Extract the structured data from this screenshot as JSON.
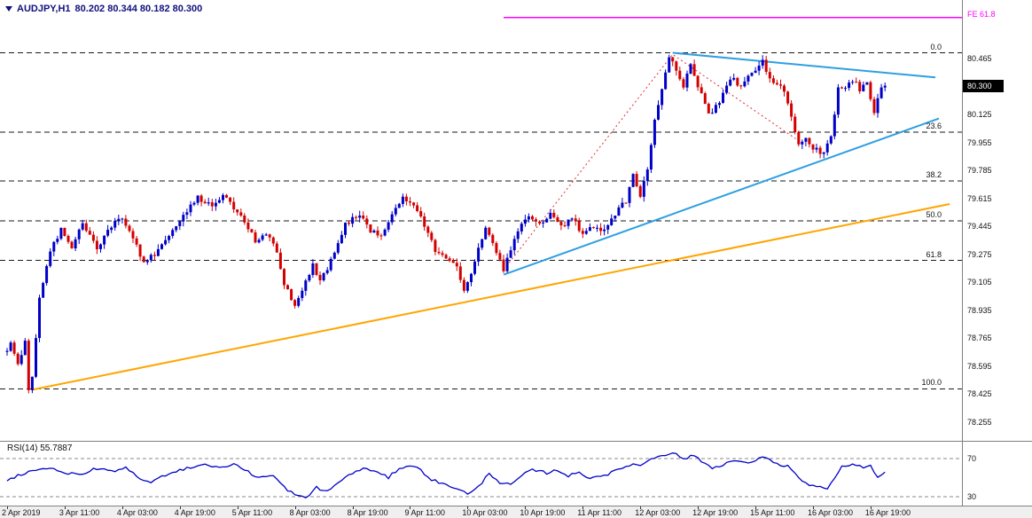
{
  "header": {
    "symbol": "AUDJPY,H1",
    "ohlc": "80.202 80.344 80.182 80.300"
  },
  "chart_data": {
    "type": "candlestick",
    "title": "AUDJPY H1",
    "timeframe": "H1",
    "open": 80.202,
    "high": 80.344,
    "low": 80.182,
    "close": 80.3,
    "current_price": "80.300",
    "price_ticks": [
      "80.465",
      "80.125",
      "79.955",
      "79.785",
      "79.615",
      "79.445",
      "79.275",
      "79.105",
      "78.935",
      "78.765",
      "78.595",
      "78.425",
      "78.255"
    ],
    "time_labels": [
      "2 Apr 2019",
      "3 Apr 11:00",
      "4 Apr 03:00",
      "4 Apr 19:00",
      "5 Apr 11:00",
      "8 Apr 03:00",
      "8 Apr 19:00",
      "9 Apr 11:00",
      "10 Apr 03:00",
      "10 Apr 19:00",
      "11 Apr 11:00",
      "12 Apr 03:00",
      "12 Apr 19:00",
      "15 Apr 11:00",
      "16 Apr 03:00",
      "16 Apr 19:00"
    ],
    "y_axis": {
      "top_tick_price": 80.465,
      "tick_step": 0.17,
      "min_visible": 78.15,
      "max_visible": 80.82
    },
    "candle_count": 245,
    "price_path_anchors": [
      [
        0,
        78.68
      ],
      [
        2,
        78.72
      ],
      [
        4,
        78.6
      ],
      [
        6,
        78.74
      ],
      [
        7,
        78.46
      ],
      [
        8,
        78.52
      ],
      [
        10,
        79.0
      ],
      [
        13,
        79.3
      ],
      [
        16,
        79.42
      ],
      [
        19,
        79.32
      ],
      [
        22,
        79.46
      ],
      [
        26,
        79.31
      ],
      [
        30,
        79.45
      ],
      [
        33,
        79.5
      ],
      [
        36,
        79.38
      ],
      [
        39,
        79.22
      ],
      [
        42,
        79.28
      ],
      [
        46,
        79.4
      ],
      [
        50,
        79.52
      ],
      [
        54,
        79.62
      ],
      [
        58,
        79.56
      ],
      [
        61,
        79.64
      ],
      [
        64,
        79.55
      ],
      [
        67,
        79.48
      ],
      [
        70,
        79.35
      ],
      [
        73,
        79.4
      ],
      [
        76,
        79.3
      ],
      [
        78,
        79.1
      ],
      [
        81,
        78.95
      ],
      [
        83,
        79.05
      ],
      [
        86,
        79.22
      ],
      [
        88,
        79.1
      ],
      [
        91,
        79.24
      ],
      [
        95,
        79.45
      ],
      [
        99,
        79.52
      ],
      [
        102,
        79.42
      ],
      [
        105,
        79.38
      ],
      [
        108,
        79.5
      ],
      [
        111,
        79.63
      ],
      [
        114,
        79.58
      ],
      [
        117,
        79.45
      ],
      [
        120,
        79.3
      ],
      [
        123,
        79.26
      ],
      [
        126,
        79.2
      ],
      [
        128,
        79.05
      ],
      [
        130,
        79.15
      ],
      [
        132,
        79.3
      ],
      [
        134,
        79.45
      ],
      [
        136,
        79.35
      ],
      [
        139,
        79.18
      ],
      [
        142,
        79.35
      ],
      [
        145,
        79.5
      ],
      [
        149,
        79.45
      ],
      [
        152,
        79.53
      ],
      [
        155,
        79.44
      ],
      [
        158,
        79.5
      ],
      [
        161,
        79.4
      ],
      [
        164,
        79.45
      ],
      [
        167,
        79.42
      ],
      [
        170,
        79.52
      ],
      [
        173,
        79.6
      ],
      [
        175,
        79.75
      ],
      [
        177,
        79.62
      ],
      [
        179,
        79.8
      ],
      [
        181,
        80.1
      ],
      [
        183,
        80.28
      ],
      [
        185,
        80.48
      ],
      [
        187,
        80.38
      ],
      [
        189,
        80.3
      ],
      [
        191,
        80.42
      ],
      [
        194,
        80.25
      ],
      [
        196,
        80.12
      ],
      [
        199,
        80.2
      ],
      [
        202,
        80.35
      ],
      [
        205,
        80.3
      ],
      [
        208,
        80.38
      ],
      [
        211,
        80.44
      ],
      [
        214,
        80.3
      ],
      [
        217,
        80.28
      ],
      [
        219,
        80.1
      ],
      [
        221,
        79.95
      ],
      [
        223,
        79.98
      ],
      [
        225,
        79.92
      ],
      [
        228,
        79.88
      ],
      [
        230,
        80.0
      ],
      [
        232,
        80.28
      ],
      [
        234,
        80.3
      ],
      [
        236,
        80.34
      ],
      [
        238,
        80.28
      ],
      [
        240,
        80.33
      ],
      [
        242,
        80.12
      ],
      [
        244,
        80.3
      ]
    ],
    "fib_retracement": {
      "levels": [
        {
          "label": "0.0",
          "price": 80.5
        },
        {
          "label": "23.6",
          "price": 80.017
        },
        {
          "label": "38.2",
          "price": 79.719
        },
        {
          "label": "50.0",
          "price": 79.478
        },
        {
          "label": "61.8",
          "price": 79.236
        },
        {
          "label": "100.0",
          "price": 78.455
        }
      ]
    },
    "fib_expansion": {
      "label": "FE 61.8",
      "price": 80.715,
      "start_index": 138
    },
    "trendlines": [
      {
        "name": "triangle-upper-trendline",
        "color": "#2F9FE0",
        "width": 2,
        "style": "solid",
        "points": [
          [
            185,
            80.5
          ],
          [
            258,
            80.35
          ]
        ]
      },
      {
        "name": "triangle-lower-trendline",
        "color": "#2F9FE0",
        "width": 2,
        "style": "solid",
        "points": [
          [
            138,
            79.15
          ],
          [
            259,
            80.1
          ]
        ]
      },
      {
        "name": "long-term-support-trendline",
        "color": "#FFA500",
        "width": 2,
        "style": "solid",
        "points": [
          [
            7,
            78.45
          ],
          [
            262,
            79.58
          ]
        ]
      },
      {
        "name": "fib-expansion-construction-line",
        "color": "#E03030",
        "width": 1,
        "style": "dotted",
        "points": [
          [
            138,
            79.18
          ],
          [
            185,
            80.49
          ],
          [
            221,
            79.95
          ]
        ]
      }
    ],
    "indicator": {
      "label": "RSI(14) 55.7887",
      "name": "RSI",
      "period": 14,
      "value": 55.7887,
      "levels": [
        "70",
        "30"
      ],
      "anchors": [
        [
          0,
          48
        ],
        [
          5,
          55
        ],
        [
          10,
          60
        ],
        [
          15,
          57
        ],
        [
          20,
          52
        ],
        [
          25,
          60
        ],
        [
          30,
          55
        ],
        [
          33,
          62
        ],
        [
          36,
          50
        ],
        [
          40,
          45
        ],
        [
          45,
          55
        ],
        [
          50,
          60
        ],
        [
          55,
          64
        ],
        [
          60,
          60
        ],
        [
          63,
          65
        ],
        [
          66,
          58
        ],
        [
          70,
          50
        ],
        [
          74,
          52
        ],
        [
          77,
          40
        ],
        [
          80,
          32
        ],
        [
          83,
          28
        ],
        [
          86,
          40
        ],
        [
          89,
          35
        ],
        [
          92,
          45
        ],
        [
          96,
          55
        ],
        [
          100,
          60
        ],
        [
          103,
          55
        ],
        [
          106,
          50
        ],
        [
          109,
          60
        ],
        [
          112,
          63
        ],
        [
          115,
          58
        ],
        [
          118,
          48
        ],
        [
          122,
          42
        ],
        [
          126,
          38
        ],
        [
          128,
          32
        ],
        [
          131,
          40
        ],
        [
          134,
          55
        ],
        [
          137,
          45
        ],
        [
          140,
          42
        ],
        [
          143,
          52
        ],
        [
          146,
          58
        ],
        [
          150,
          55
        ],
        [
          153,
          58
        ],
        [
          156,
          52
        ],
        [
          159,
          55
        ],
        [
          162,
          50
        ],
        [
          165,
          52
        ],
        [
          168,
          55
        ],
        [
          171,
          60
        ],
        [
          174,
          65
        ],
        [
          176,
          62
        ],
        [
          178,
          68
        ],
        [
          181,
          73
        ],
        [
          185,
          76
        ],
        [
          188,
          70
        ],
        [
          191,
          73
        ],
        [
          194,
          65
        ],
        [
          196,
          60
        ],
        [
          199,
          64
        ],
        [
          202,
          68
        ],
        [
          205,
          65
        ],
        [
          208,
          68
        ],
        [
          211,
          72
        ],
        [
          214,
          64
        ],
        [
          217,
          62
        ],
        [
          219,
          55
        ],
        [
          221,
          45
        ],
        [
          224,
          42
        ],
        [
          228,
          38
        ],
        [
          230,
          48
        ],
        [
          232,
          62
        ],
        [
          234,
          62
        ],
        [
          236,
          64
        ],
        [
          238,
          60
        ],
        [
          240,
          62
        ],
        [
          242,
          50
        ],
        [
          244,
          55.79
        ]
      ]
    },
    "colors": {
      "bull": "#0000C8",
      "bear": "#D40000",
      "rsi_line": "#0000C8",
      "fe_line": "#FF00FF",
      "fib_line": "#1a1a1a",
      "axis_text": "#111111",
      "symbol_text": "#10107E"
    }
  }
}
